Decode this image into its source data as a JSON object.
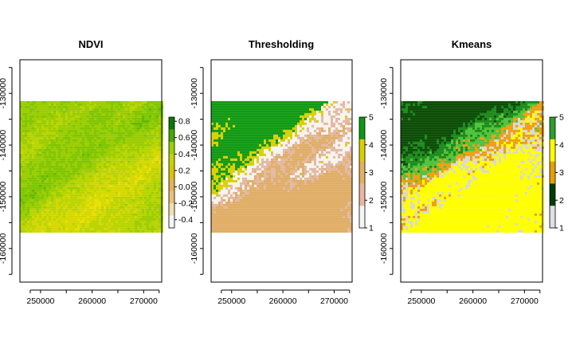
{
  "chart_data": [
    {
      "type": "heatmap",
      "title": "NDVI",
      "x_ticks": [
        250000,
        260000,
        270000
      ],
      "y_ticks": [
        -130000,
        -140000,
        -150000,
        -160000
      ],
      "xlim": [
        246000,
        273500
      ],
      "ylim": [
        -166500,
        -123500
      ],
      "raster_extent": {
        "x": [
          246000,
          273500
        ],
        "y": [
          -156500,
          -131500
        ]
      },
      "legend": {
        "kind": "continuous",
        "range": [
          -0.5,
          0.85
        ],
        "ticks": [
          0.8,
          0.6,
          0.4,
          0.2,
          0.0,
          -0.2,
          -0.4
        ],
        "tick_labels": [
          "0.8",
          "0.6",
          "0.4",
          "0.2",
          "0.0",
          "-0.2",
          "-0.4"
        ],
        "colors": [
          "#f5f5f5",
          "#f0e0b0",
          "#e9c27a",
          "#e4b354",
          "#dcc300",
          "#c6d300",
          "#9bd000",
          "#47a800",
          "#0a7a00"
        ]
      },
      "palette": [
        "#e8e000",
        "#d4d800",
        "#b8d400",
        "#9bcd00",
        "#7fc600",
        "#5fb800"
      ]
    },
    {
      "type": "heatmap",
      "title": "Thresholding",
      "x_ticks": [
        250000,
        260000,
        270000
      ],
      "y_ticks": [
        -130000,
        -140000,
        -150000,
        -160000
      ],
      "xlim": [
        246000,
        273500
      ],
      "ylim": [
        -166500,
        -123500
      ],
      "raster_extent": {
        "x": [
          246000,
          273500
        ],
        "y": [
          -156500,
          -131500
        ]
      },
      "legend": {
        "kind": "classes",
        "range": [
          1,
          5
        ],
        "ticks": [
          5,
          4,
          3,
          2,
          1
        ],
        "tick_labels": [
          "5",
          "4",
          "3",
          "2",
          "1"
        ],
        "colors": [
          "#f5f5f5",
          "#e8b7a0",
          "#e4b062",
          "#d9d000",
          "#0a9a10"
        ]
      },
      "palette": [
        "#f6f3ee",
        "#e3b8a4",
        "#e0ae66",
        "#d9d000",
        "#129a14"
      ]
    },
    {
      "type": "heatmap",
      "title": "Kmeans",
      "x_ticks": [
        250000,
        260000,
        270000
      ],
      "y_ticks": [
        -130000,
        -140000,
        -150000,
        -160000
      ],
      "xlim": [
        246000,
        273500
      ],
      "ylim": [
        -166500,
        -123500
      ],
      "raster_extent": {
        "x": [
          246000,
          273500
        ],
        "y": [
          -156500,
          -131500
        ]
      },
      "legend": {
        "kind": "classes",
        "range": [
          1,
          5
        ],
        "ticks": [
          5,
          4,
          3,
          2,
          1
        ],
        "tick_labels": [
          "5",
          "4",
          "3",
          "2",
          "1"
        ],
        "colors": [
          "#e0e0e0",
          "#003d00",
          "#e8a000",
          "#ffff00",
          "#2e9e2a"
        ]
      },
      "palette": [
        "#d8d8d8",
        "#0b4d06",
        "#ee9e12",
        "#ffff00",
        "#4fc23a",
        "#1c8a1a"
      ]
    }
  ]
}
